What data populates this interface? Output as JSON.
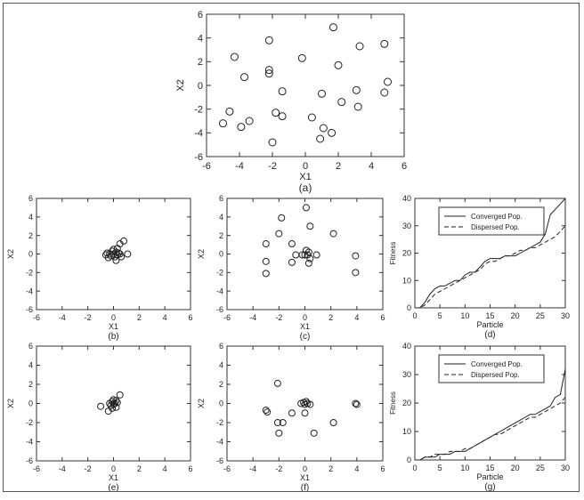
{
  "chart_data": [
    {
      "id": "a",
      "type": "scatter",
      "caption": "(a)",
      "xlabel": "X1",
      "ylabel": "X2",
      "xlim": [
        -6,
        6
      ],
      "ylim": [
        -6,
        6
      ],
      "xticks": [
        -6,
        -4,
        -2,
        0,
        2,
        4,
        6
      ],
      "yticks": [
        -6,
        -4,
        -2,
        0,
        2,
        4,
        6
      ],
      "grid": false,
      "marker": "circle",
      "points": [
        [
          -4.3,
          2.4
        ],
        [
          -3.7,
          0.7
        ],
        [
          -2.2,
          3.8
        ],
        [
          -2.2,
          1.3
        ],
        [
          -2.2,
          1.0
        ],
        [
          -1.4,
          -0.5
        ],
        [
          -0.2,
          2.3
        ],
        [
          1.7,
          4.9
        ],
        [
          2.0,
          1.7
        ],
        [
          3.3,
          3.3
        ],
        [
          4.8,
          3.5
        ],
        [
          5.0,
          0.3
        ],
        [
          4.8,
          -0.6
        ],
        [
          3.1,
          -0.4
        ],
        [
          3.2,
          -1.8
        ],
        [
          2.2,
          -1.4
        ],
        [
          1.0,
          -0.7
        ],
        [
          0.4,
          -2.7
        ],
        [
          1.1,
          -3.6
        ],
        [
          1.6,
          -4.0
        ],
        [
          0.9,
          -4.5
        ],
        [
          -1.4,
          -2.6
        ],
        [
          -1.8,
          -2.3
        ],
        [
          -2.0,
          -4.8
        ],
        [
          -3.4,
          -3.0
        ],
        [
          -3.9,
          -3.5
        ],
        [
          -4.6,
          -2.2
        ],
        [
          -5.0,
          -3.2
        ]
      ]
    },
    {
      "id": "b",
      "type": "scatter",
      "caption": "(b)",
      "xlabel": "X1",
      "ylabel": "X2",
      "xlim": [
        -6,
        6
      ],
      "ylim": [
        -6,
        6
      ],
      "xticks": [
        -6,
        -4,
        -2,
        0,
        2,
        4,
        6
      ],
      "yticks": [
        -6,
        -4,
        -2,
        0,
        2,
        4,
        6
      ],
      "grid": false,
      "marker": "circle",
      "points": [
        [
          -0.6,
          -0.1
        ],
        [
          -0.5,
          0.1
        ],
        [
          -0.4,
          -0.4
        ],
        [
          -0.3,
          0.0
        ],
        [
          -0.2,
          -0.2
        ],
        [
          -0.1,
          0.3
        ],
        [
          0.0,
          0.0
        ],
        [
          0.0,
          0.5
        ],
        [
          0.1,
          -0.3
        ],
        [
          0.2,
          0.2
        ],
        [
          0.2,
          -0.7
        ],
        [
          0.3,
          0.6
        ],
        [
          0.3,
          -0.1
        ],
        [
          0.4,
          0.1
        ],
        [
          0.5,
          0.0
        ],
        [
          0.5,
          1.1
        ],
        [
          0.6,
          -0.3
        ],
        [
          0.8,
          1.4
        ],
        [
          1.1,
          0.0
        ]
      ]
    },
    {
      "id": "c",
      "type": "scatter",
      "caption": "(c)",
      "xlabel": "X1",
      "ylabel": "X2",
      "xlim": [
        -6,
        6
      ],
      "ylim": [
        -6,
        6
      ],
      "xticks": [
        -6,
        -4,
        -2,
        0,
        2,
        4,
        6
      ],
      "yticks": [
        -6,
        -4,
        -2,
        0,
        2,
        4,
        6
      ],
      "grid": false,
      "marker": "circle",
      "points": [
        [
          0.1,
          5.0
        ],
        [
          -1.8,
          3.9
        ],
        [
          0.4,
          3.0
        ],
        [
          -2.0,
          2.2
        ],
        [
          2.2,
          2.2
        ],
        [
          -3.0,
          1.1
        ],
        [
          -1.0,
          1.1
        ],
        [
          -3.0,
          -0.8
        ],
        [
          -3.0,
          -2.1
        ],
        [
          -0.7,
          -0.1
        ],
        [
          -1.0,
          -0.9
        ],
        [
          -0.2,
          -0.1
        ],
        [
          0.0,
          -0.1
        ],
        [
          0.1,
          0.4
        ],
        [
          0.2,
          -0.1
        ],
        [
          0.3,
          0.2
        ],
        [
          0.4,
          -0.5
        ],
        [
          0.3,
          -1.0
        ],
        [
          0.9,
          -0.1
        ],
        [
          3.9,
          -0.2
        ],
        [
          3.9,
          -2.0
        ]
      ]
    },
    {
      "id": "d",
      "type": "line",
      "caption": "(d)",
      "xlabel": "Particle",
      "ylabel": "Fitness",
      "xlim": [
        0,
        30
      ],
      "ylim": [
        0,
        40
      ],
      "xticks": [
        0,
        5,
        10,
        15,
        20,
        25,
        30
      ],
      "yticks": [
        0,
        10,
        20,
        30,
        40
      ],
      "grid": false,
      "legend_position": "top-center",
      "x": [
        1,
        2,
        3,
        4,
        5,
        6,
        7,
        8,
        9,
        10,
        11,
        12,
        13,
        14,
        15,
        16,
        17,
        18,
        19,
        20,
        21,
        22,
        23,
        24,
        25,
        26,
        27,
        28,
        29,
        30
      ],
      "series": [
        {
          "name": "Converged Pop.",
          "style": "solid",
          "values": [
            0,
            2,
            5,
            7,
            8,
            8,
            9,
            10,
            10,
            12,
            13,
            13,
            15,
            17,
            18,
            18,
            18,
            19,
            19,
            19,
            20,
            21,
            22,
            23,
            24,
            27,
            34,
            36,
            38,
            40
          ]
        },
        {
          "name": "Dispersed Pop.",
          "style": "dashed",
          "values": [
            0,
            1,
            3,
            5,
            6,
            7,
            8,
            9,
            10,
            11,
            12,
            13,
            14,
            16,
            17,
            17,
            18,
            19,
            19,
            20,
            21,
            21,
            22,
            22,
            23,
            24,
            25,
            26,
            28,
            30
          ]
        }
      ]
    },
    {
      "id": "e",
      "type": "scatter",
      "caption": "(e)",
      "xlabel": "X1",
      "ylabel": "X2",
      "xlim": [
        -6,
        6
      ],
      "ylim": [
        -6,
        6
      ],
      "xticks": [
        -6,
        -4,
        -2,
        0,
        2,
        4,
        6
      ],
      "yticks": [
        -6,
        -4,
        -2,
        0,
        2,
        4,
        6
      ],
      "grid": false,
      "marker": "circle",
      "points": [
        [
          -1.0,
          -0.3
        ],
        [
          -0.4,
          -0.8
        ],
        [
          -0.3,
          0.0
        ],
        [
          -0.2,
          -0.2
        ],
        [
          -0.1,
          0.2
        ],
        [
          0.0,
          -0.1
        ],
        [
          0.0,
          0.4
        ],
        [
          0.1,
          0.0
        ],
        [
          0.2,
          0.3
        ],
        [
          0.2,
          -0.4
        ],
        [
          0.3,
          0.1
        ],
        [
          0.5,
          0.9
        ],
        [
          -0.1,
          -0.5
        ]
      ]
    },
    {
      "id": "f",
      "type": "scatter",
      "caption": "(f)",
      "xlabel": "X1",
      "ylabel": "X2",
      "xlim": [
        -6,
        6
      ],
      "ylim": [
        -6,
        6
      ],
      "xticks": [
        -6,
        -4,
        -2,
        0,
        2,
        4,
        6
      ],
      "yticks": [
        -6,
        -4,
        -2,
        0,
        2,
        4,
        6
      ],
      "grid": false,
      "marker": "circle",
      "points": [
        [
          -2.1,
          2.1
        ],
        [
          -3.0,
          -0.7
        ],
        [
          -2.9,
          -0.9
        ],
        [
          -2.1,
          -2.0
        ],
        [
          -1.7,
          -2.0
        ],
        [
          -2.0,
          -3.1
        ],
        [
          -1.0,
          -1.0
        ],
        [
          -0.3,
          0.0
        ],
        [
          -0.1,
          0.1
        ],
        [
          0.0,
          -0.1
        ],
        [
          0.1,
          0.2
        ],
        [
          0.2,
          0.0
        ],
        [
          0.4,
          -0.1
        ],
        [
          0.0,
          -1.0
        ],
        [
          0.7,
          -3.1
        ],
        [
          2.2,
          -2.0
        ],
        [
          3.9,
          0.0
        ],
        [
          4.0,
          -0.1
        ]
      ]
    },
    {
      "id": "g",
      "type": "line",
      "caption": "(g)",
      "xlabel": "Particle",
      "ylabel": "Fitness",
      "xlim": [
        0,
        30
      ],
      "ylim": [
        0,
        40
      ],
      "xticks": [
        0,
        5,
        10,
        15,
        20,
        25,
        30
      ],
      "yticks": [
        0,
        10,
        20,
        30,
        40
      ],
      "grid": false,
      "legend_position": "top-center",
      "x": [
        1,
        2,
        3,
        4,
        5,
        6,
        7,
        8,
        9,
        10,
        11,
        12,
        13,
        14,
        15,
        16,
        17,
        18,
        19,
        20,
        21,
        22,
        23,
        24,
        25,
        26,
        27,
        28,
        29,
        30
      ],
      "series": [
        {
          "name": "Converged Pop.",
          "style": "solid",
          "values": [
            0,
            1,
            1,
            1,
            2,
            2,
            2,
            3,
            3,
            3,
            4,
            5,
            6,
            7,
            8,
            9,
            10,
            11,
            12,
            13,
            14,
            15,
            16,
            16,
            17,
            18,
            19,
            22,
            23,
            32
          ]
        },
        {
          "name": "Dispersed Pop.",
          "style": "dashed",
          "values": [
            0,
            1,
            1,
            2,
            2,
            2,
            3,
            3,
            3,
            4,
            4,
            5,
            6,
            7,
            8,
            9,
            9,
            10,
            11,
            12,
            13,
            14,
            15,
            15,
            16,
            17,
            18,
            19,
            20,
            22
          ]
        }
      ]
    }
  ]
}
